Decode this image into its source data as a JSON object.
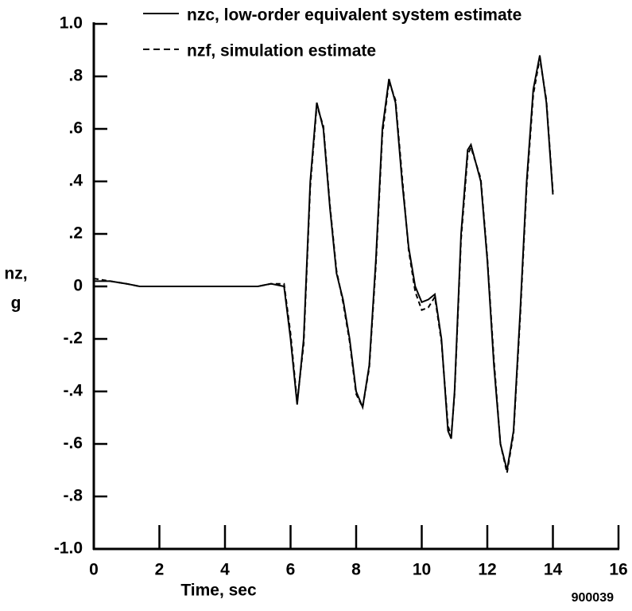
{
  "chart_data": {
    "type": "line",
    "xlabel": "Time, sec",
    "ylabel": [
      "nz,",
      "g"
    ],
    "annotation": "900039",
    "x": [
      0,
      0.5,
      1,
      1.4,
      2,
      3,
      4,
      5,
      5.4,
      5.8,
      6,
      6.2,
      6.4,
      6.6,
      6.8,
      7,
      7.2,
      7.4,
      7.6,
      7.8,
      8,
      8.2,
      8.4,
      8.6,
      8.8,
      9,
      9.2,
      9.4,
      9.6,
      9.8,
      10,
      10.2,
      10.4,
      10.6,
      10.8,
      10.9,
      11,
      11.2,
      11.4,
      11.5,
      11.8,
      12,
      12.2,
      12.4,
      12.6,
      12.8,
      13,
      13.2,
      13.4,
      13.6,
      13.8,
      14
    ],
    "series": [
      {
        "name": "nzc, low-order equivalent system estimate",
        "color": "#000000",
        "dash": "solid",
        "values": [
          0.02,
          0.02,
          0.01,
          0,
          0,
          0,
          0,
          0,
          0.01,
          0.0,
          -0.2,
          -0.45,
          -0.2,
          0.4,
          0.7,
          0.6,
          0.3,
          0.05,
          -0.05,
          -0.2,
          -0.4,
          -0.46,
          -0.3,
          0.1,
          0.6,
          0.79,
          0.7,
          0.4,
          0.15,
          0.0,
          -0.06,
          -0.05,
          -0.03,
          -0.2,
          -0.55,
          -0.58,
          -0.4,
          0.2,
          0.52,
          0.54,
          0.4,
          0.1,
          -0.3,
          -0.6,
          -0.7,
          -0.55,
          -0.1,
          0.4,
          0.75,
          0.88,
          0.7,
          0.35
        ]
      },
      {
        "name": "nzf, simulation estimate",
        "color": "#000000",
        "dash": "dashed",
        "values": [
          0.03,
          0.02,
          0.01,
          0,
          0,
          0,
          0,
          0,
          0.01,
          0.01,
          -0.18,
          -0.44,
          -0.22,
          0.38,
          0.69,
          0.61,
          0.31,
          0.06,
          -0.06,
          -0.21,
          -0.41,
          -0.46,
          -0.31,
          0.08,
          0.58,
          0.78,
          0.71,
          0.42,
          0.14,
          -0.02,
          -0.09,
          -0.08,
          -0.04,
          -0.21,
          -0.53,
          -0.57,
          -0.41,
          0.18,
          0.5,
          0.53,
          0.41,
          0.11,
          -0.28,
          -0.6,
          -0.71,
          -0.56,
          -0.12,
          0.38,
          0.73,
          0.87,
          0.71,
          0.36
        ]
      }
    ],
    "xlim": [
      0,
      16
    ],
    "xticks": [
      0,
      2,
      4,
      6,
      8,
      10,
      12,
      14,
      16
    ],
    "ylim": [
      -1,
      1
    ],
    "yticks": [
      {
        "value": -1,
        "label": "-1.0"
      },
      {
        "value": -0.8,
        "label": "-.8"
      },
      {
        "value": -0.6,
        "label": "-.6"
      },
      {
        "value": -0.4,
        "label": "-.4"
      },
      {
        "value": -0.2,
        "label": "-.2"
      },
      0,
      {
        "value": 0.2,
        "label": ".2"
      },
      {
        "value": 0.4,
        "label": ".4"
      },
      {
        "value": 0.6,
        "label": ".6"
      },
      {
        "value": 0.8,
        "label": ".8"
      },
      {
        "value": 1,
        "label": "1.0"
      }
    ],
    "legend": "top"
  }
}
